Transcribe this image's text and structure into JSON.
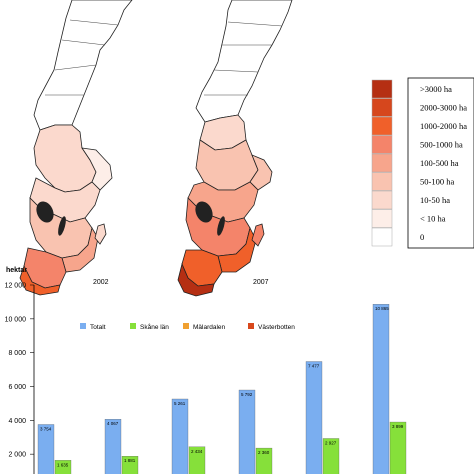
{
  "maps": [
    {
      "year_label": "2002"
    },
    {
      "year_label": "2007"
    }
  ],
  "map_legend": {
    "classes": [
      {
        "label": ">3000 ha",
        "color": "#b52f13"
      },
      {
        "label": "2000-3000 ha",
        "color": "#d6471d"
      },
      {
        "label": "1000-2000 ha",
        "color": "#f0602a"
      },
      {
        "label": "500-1000 ha",
        "color": "#f4846a"
      },
      {
        "label": "100-500 ha",
        "color": "#f7a58c"
      },
      {
        "label": "50-100 ha",
        "color": "#f9c3b0"
      },
      {
        "label": "10-50 ha",
        "color": "#fbd9cd"
      },
      {
        "label": "< 10 ha",
        "color": "#fdeee8"
      },
      {
        "label": "0",
        "color": "#ffffff"
      }
    ]
  },
  "chart_data": {
    "type": "bar",
    "ylabel": "hektar",
    "ylim": [
      0,
      12000
    ],
    "yticks": [
      {
        "value": 2000,
        "label": "2 000"
      },
      {
        "value": 4000,
        "label": "4 000"
      },
      {
        "value": 6000,
        "label": "6 000"
      },
      {
        "value": 8000,
        "label": "8 000"
      },
      {
        "value": 10000,
        "label": "10 000"
      },
      {
        "value": 12000,
        "label": "12 000"
      }
    ],
    "legend_position": "top",
    "series": [
      {
        "name": "Totalt",
        "color": "#7aaef0",
        "values": [
          3754,
          4067,
          5261,
          5792,
          7477,
          10865
        ],
        "value_labels": [
          "3 754",
          "4 067",
          "5 261",
          "5 792",
          "7 477",
          "10 865"
        ]
      },
      {
        "name": "Skåne län",
        "color": "#86e03a",
        "values": [
          1635,
          1881,
          2434,
          2360,
          2927,
          3899
        ],
        "value_labels": [
          "1 635",
          "1 881",
          "2 434",
          "2 360",
          "2 927",
          "3 899"
        ]
      },
      {
        "name": "Mälardalen",
        "color": "#f0a030",
        "values": [],
        "value_labels": []
      },
      {
        "name": "Västerbotten",
        "color": "#d8481c",
        "values": [],
        "value_labels": []
      }
    ]
  }
}
